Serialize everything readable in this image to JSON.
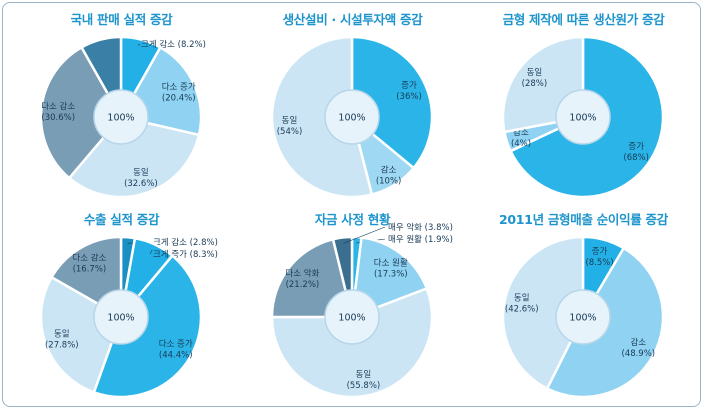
{
  "colors": {
    "title": "#1d94cc",
    "center_fill": "#e6f3fb",
    "center_stroke": "#b7d6ea"
  },
  "chart_data": [
    {
      "type": "pie",
      "title": "국내 판매 실적 증감",
      "center_label": "100%",
      "slices": [
        {
          "name": "크게 감소",
          "value": 8.2,
          "pct": "(8.2%)",
          "color": "#22b0e6"
        },
        {
          "name": "다소 증가",
          "value": 20.4,
          "pct": "(20.4%)",
          "color": "#8fd2f2"
        },
        {
          "name": "동일",
          "value": 32.6,
          "pct": "(32.6%)",
          "color": "#cbe5f5"
        },
        {
          "name": "다소 감소",
          "value": 30.6,
          "pct": "(30.6%)",
          "color": "#7a9db6"
        },
        {
          "name": "",
          "value": 8.2,
          "pct": "",
          "color": "#3a7fa6"
        }
      ]
    },
    {
      "type": "pie",
      "title": "생산설비 · 시설투자액 증감",
      "center_label": "100%",
      "slices": [
        {
          "name": "증가",
          "value": 36,
          "pct": "(36%)",
          "color": "#2ab4e8"
        },
        {
          "name": "감소",
          "value": 10,
          "pct": "(10%)",
          "color": "#9fd8f3"
        },
        {
          "name": "동일",
          "value": 54,
          "pct": "(54%)",
          "color": "#cbe5f5"
        }
      ]
    },
    {
      "type": "pie",
      "title": "금형 제작에 따른 생산원가 증감",
      "center_label": "100%",
      "slices": [
        {
          "name": "증가",
          "value": 68,
          "pct": "(68%)",
          "color": "#2ab4e8"
        },
        {
          "name": "감소",
          "value": 4,
          "pct": "(4%)",
          "color": "#8fd2f2"
        },
        {
          "name": "동일",
          "value": 28,
          "pct": "(28%)",
          "color": "#cbe5f5"
        }
      ]
    },
    {
      "type": "pie",
      "title": "수출 실적 증감",
      "center_label": "100%",
      "slices": [
        {
          "name": "크게 감소",
          "value": 2.8,
          "pct": "(2.8%)",
          "color": "#1a8fc4"
        },
        {
          "name": "크게 증가",
          "value": 8.3,
          "pct": "(8.3%)",
          "color": "#22b0e6"
        },
        {
          "name": "다소 증가",
          "value": 44.4,
          "pct": "(44.4%)",
          "color": "#2ab4e8"
        },
        {
          "name": "동일",
          "value": 27.8,
          "pct": "(27.8%)",
          "color": "#cbe5f5"
        },
        {
          "name": "다소 감소",
          "value": 16.7,
          "pct": "(16.7%)",
          "color": "#7a9db6"
        }
      ]
    },
    {
      "type": "pie",
      "title": "자금 사정 현황",
      "center_label": "100%",
      "slices": [
        {
          "name": "매우 원활",
          "value": 1.9,
          "pct": "(1.9%)",
          "color": "#2ab4e8"
        },
        {
          "name": "다소 원활",
          "value": 17.3,
          "pct": "(17.3%)",
          "color": "#8fd2f2"
        },
        {
          "name": "동일",
          "value": 55.8,
          "pct": "(55.8%)",
          "color": "#cbe5f5"
        },
        {
          "name": "다소 악화",
          "value": 21.2,
          "pct": "(21.2%)",
          "color": "#7a9db6"
        },
        {
          "name": "매우 악화",
          "value": 3.8,
          "pct": "(3.8%)",
          "color": "#3a6f8f"
        }
      ]
    },
    {
      "type": "pie",
      "title": "2011년 금형매출 순이익률 증감",
      "center_label": "100%",
      "slices": [
        {
          "name": "증가",
          "value": 8.5,
          "pct": "(8.5%)",
          "color": "#22b0e6"
        },
        {
          "name": "감소",
          "value": 48.9,
          "pct": "(48.9%)",
          "color": "#8fd2f2"
        },
        {
          "name": "동일",
          "value": 42.6,
          "pct": "(42.6%)",
          "color": "#cbe5f5"
        }
      ]
    }
  ]
}
